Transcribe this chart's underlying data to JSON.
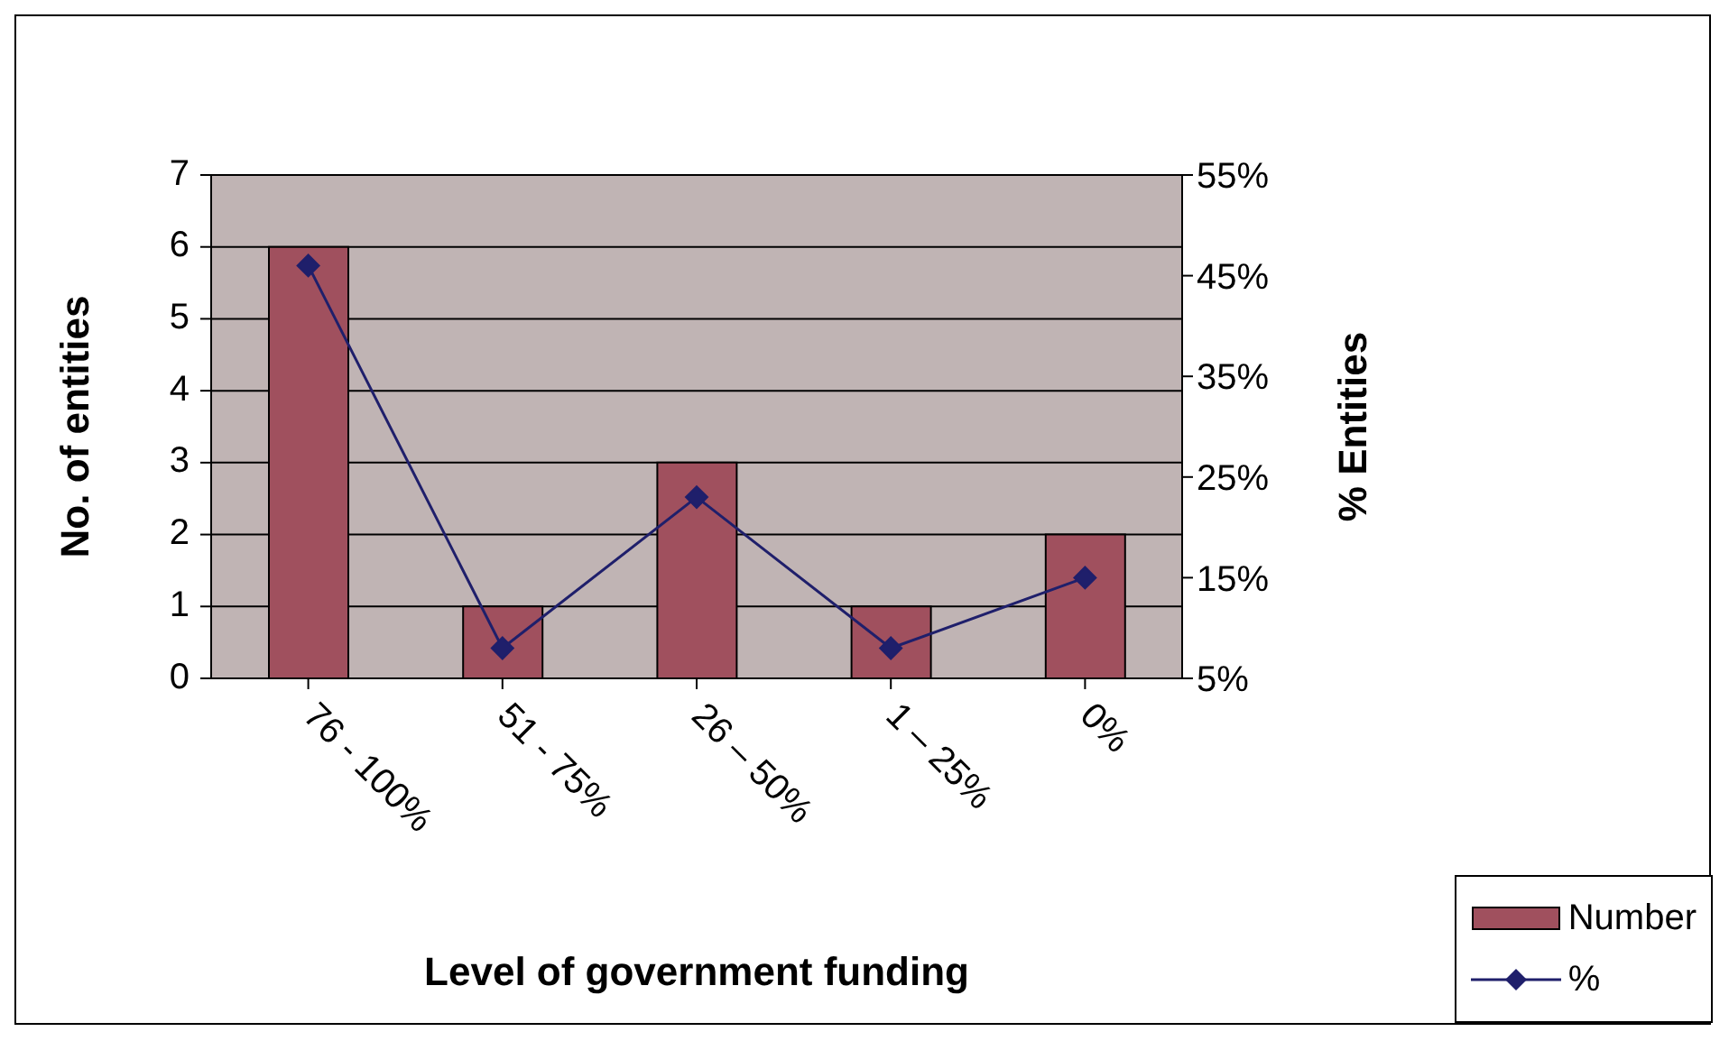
{
  "chart_data": {
    "type": "bar",
    "xlabel": "Level of government funding",
    "ylabel": "No. of entities",
    "y2label": "% Entities",
    "categories": [
      "76 - 100%",
      "51 - 75%",
      "26 – 50%",
      "1 – 25%",
      "0%"
    ],
    "series": [
      {
        "name": "Number",
        "color": "#a0505e",
        "values": [
          6,
          1,
          3,
          1,
          2
        ]
      },
      {
        "name": "%",
        "type": "line",
        "axis": "y2",
        "color": "#1f1f6b",
        "marker": "diamond",
        "values": [
          46,
          8,
          23,
          8,
          15
        ]
      }
    ],
    "ylim": [
      0,
      7
    ],
    "yticks": [
      0,
      1,
      2,
      3,
      4,
      5,
      6,
      7
    ],
    "y2lim": [
      5,
      55
    ],
    "y2ticks": [
      {
        "value": 5,
        "label": "5%"
      },
      {
        "value": 15,
        "label": "15%"
      },
      {
        "value": 25,
        "label": "25%"
      },
      {
        "value": 35,
        "label": "35%"
      },
      {
        "value": 45,
        "label": "45%"
      },
      {
        "value": 55,
        "label": "55%"
      }
    ],
    "grid": "y",
    "legend": "bottom right"
  }
}
